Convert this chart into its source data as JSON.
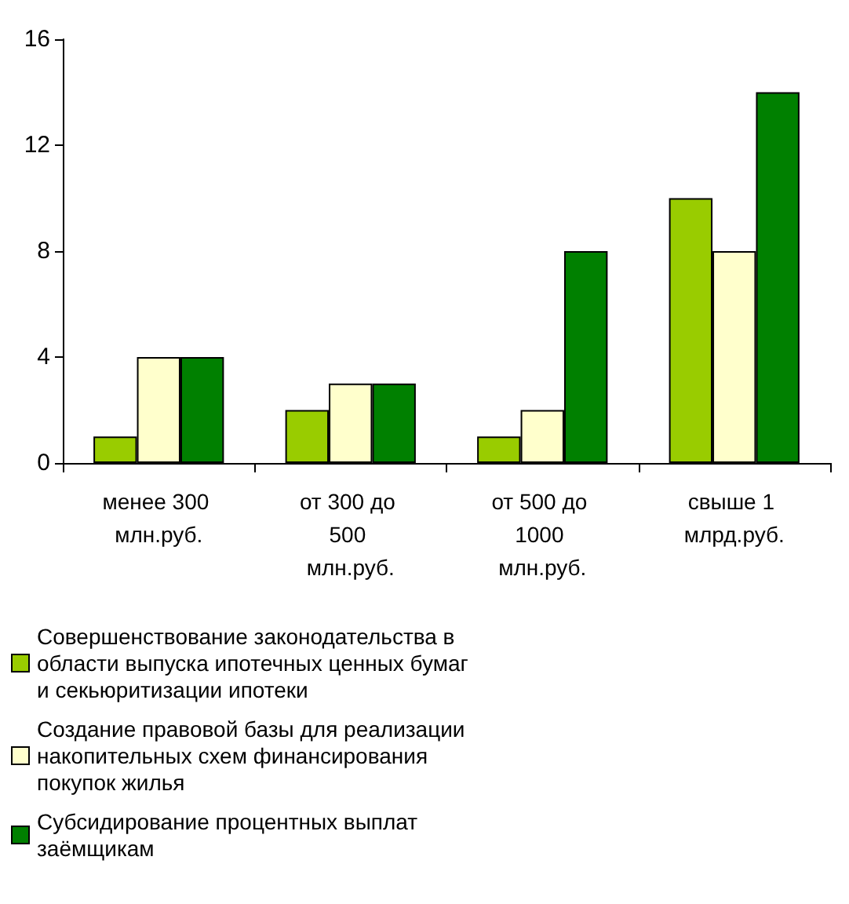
{
  "chart_data": {
    "type": "bar",
    "categories": [
      "менее 300 млн.руб.",
      "от 300 до 500 млн.руб.",
      "от 500 до 1000 млн.руб.",
      "свыше 1 млрд.руб."
    ],
    "series": [
      {
        "name": "Совершенствование законодательства в области выпуска ипотечных ценных бумаг и секьюритизации ипотеки",
        "color": "#99cc00",
        "values": [
          1,
          2,
          1,
          10
        ]
      },
      {
        "name": "Создание правовой базы для реализации накопительных схем финансирования покупок жилья",
        "color": "#ffffcc",
        "values": [
          4,
          3,
          2,
          8
        ]
      },
      {
        "name": "Субсидирование процентных выплат заёмщикам",
        "color": "#008000",
        "values": [
          4,
          3,
          8,
          14
        ]
      }
    ],
    "ylim": [
      0,
      16
    ],
    "yticks": [
      0,
      4,
      8,
      12,
      16
    ],
    "grid": false,
    "legend": "bottom"
  }
}
